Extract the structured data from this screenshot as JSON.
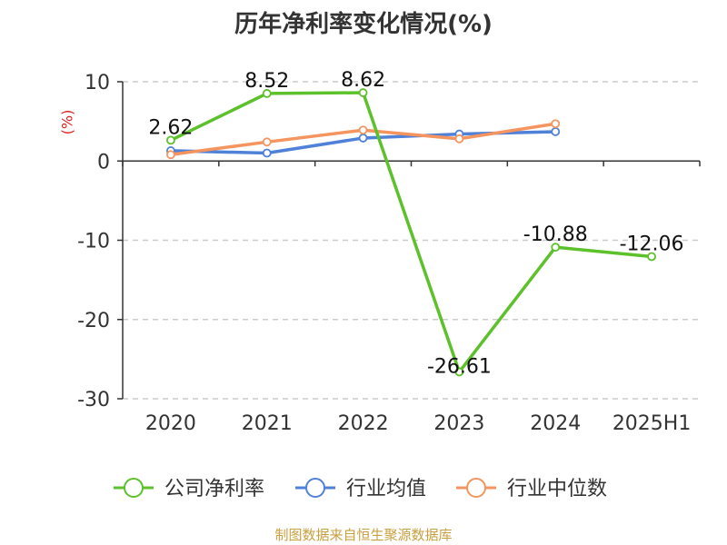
{
  "title": "历年净利率变化情况(%)",
  "footer": "制图数据来自恒生聚源数据库",
  "chart_data": {
    "type": "line",
    "title": "历年净利率变化情况(%)",
    "ylabel": "(%)",
    "ylim": [
      -30,
      10
    ],
    "yticks": [
      10,
      0,
      -10,
      -20,
      -30
    ],
    "categories": [
      "2020",
      "2021",
      "2022",
      "2023",
      "2024",
      "2025H1"
    ],
    "grid": true,
    "legend_position": "bottom",
    "series": [
      {
        "name": "公司净利率",
        "color": "#5cc12b",
        "values": [
          2.62,
          8.52,
          8.62,
          -26.61,
          -10.88,
          -12.06
        ],
        "data_labels": [
          "2.62",
          "8.52",
          "8.62",
          "-26.61",
          "-10.88",
          "-12.06"
        ]
      },
      {
        "name": "行业均值",
        "color": "#4f81d9",
        "values": [
          1.3,
          1.0,
          2.9,
          3.4,
          3.7,
          null
        ]
      },
      {
        "name": "行业中位数",
        "color": "#f49560",
        "values": [
          0.8,
          2.4,
          3.9,
          2.8,
          4.7,
          null
        ]
      }
    ]
  }
}
